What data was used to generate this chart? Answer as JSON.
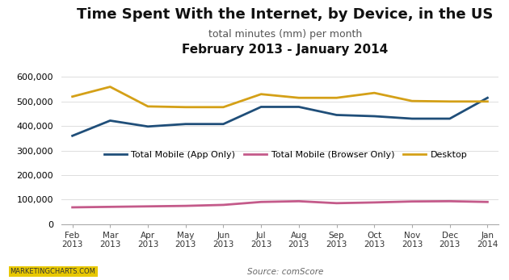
{
  "title": "Time Spent With the Internet, by Device, in the US",
  "subtitle": "total minutes (mm) per month",
  "subtitle2": "February 2013 - January 2014",
  "source": "Source: comScore",
  "watermark": "MARKETINGCHARTS.COM",
  "months": [
    "Feb\n2013",
    "Mar\n2013",
    "Apr\n2013",
    "May\n2013",
    "Jun\n2013",
    "Jul\n2013",
    "Aug\n2013",
    "Sep\n2013",
    "Oct\n2013",
    "Nov\n2013",
    "Dec\n2013",
    "Jan\n2014"
  ],
  "total_mobile_app": [
    360000,
    422000,
    398000,
    408000,
    408000,
    478000,
    478000,
    445000,
    440000,
    430000,
    430000,
    515000
  ],
  "total_mobile_browser": [
    68000,
    70000,
    72000,
    74000,
    78000,
    90000,
    93000,
    85000,
    88000,
    92000,
    93000,
    90000
  ],
  "desktop": [
    520000,
    560000,
    480000,
    477000,
    477000,
    530000,
    515000,
    515000,
    535000,
    502000,
    500000,
    500000
  ],
  "colors": {
    "mobile_app": "#1F4E79",
    "mobile_browser": "#C45A8A",
    "desktop": "#D4A017"
  },
  "ylim": [
    0,
    640000
  ],
  "yticks": [
    0,
    100000,
    200000,
    300000,
    400000,
    500000,
    600000
  ],
  "legend_labels": [
    "Total Mobile (App Only)",
    "Total Mobile (Browser Only)",
    "Desktop"
  ],
  "bg_color": "#ffffff",
  "plot_bg": "#ffffff",
  "title_fontsize": 13,
  "subtitle_fontsize": 9,
  "subtitle2_fontsize": 11
}
